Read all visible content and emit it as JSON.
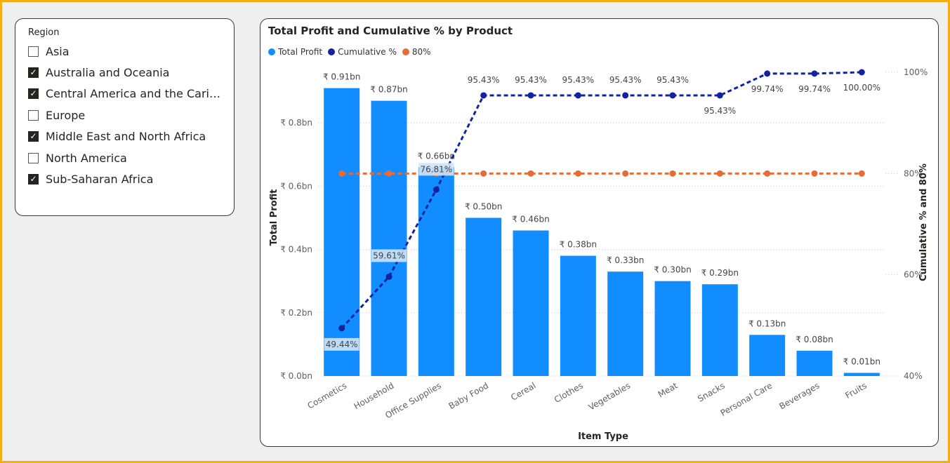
{
  "slicer": {
    "title": "Region",
    "items": [
      {
        "label": "Asia",
        "checked": false
      },
      {
        "label": "Australia and Oceania",
        "checked": true
      },
      {
        "label": "Central America and the Caribbe...",
        "checked": true
      },
      {
        "label": "Europe",
        "checked": false
      },
      {
        "label": "Middle East and North Africa",
        "checked": true
      },
      {
        "label": "North America",
        "checked": false
      },
      {
        "label": "Sub-Saharan Africa",
        "checked": true
      }
    ],
    "check_glyph": "✓"
  },
  "chart": {
    "title": "Total Profit and Cumulative % by Product",
    "legend": [
      {
        "label": "Total Profit",
        "color": "#118dff"
      },
      {
        "label": "Cumulative %",
        "color": "#12239e"
      },
      {
        "label": "80%",
        "color": "#e66c37"
      }
    ]
  },
  "chart_data": {
    "type": "bar",
    "title": "Total Profit and Cumulative % by Product",
    "xlabel": "Item Type",
    "ylabel": "Total Profit",
    "y2label": "Cumulative % and 80%",
    "categories": [
      "Cosmetics",
      "Household",
      "Office Supplies",
      "Baby Food",
      "Cereal",
      "Clothes",
      "Vegetables",
      "Meat",
      "Snacks",
      "Personal Care",
      "Beverages",
      "Fruits"
    ],
    "series": [
      {
        "name": "Total Profit",
        "type": "bar",
        "axis": "left",
        "color": "#118dff",
        "values": [
          0.91,
          0.87,
          0.66,
          0.5,
          0.46,
          0.38,
          0.33,
          0.3,
          0.29,
          0.13,
          0.08,
          0.01
        ],
        "labels": [
          "₹ 0.91bn",
          "₹ 0.87bn",
          "₹ 0.66bn",
          "₹ 0.50bn",
          "₹ 0.46bn",
          "₹ 0.38bn",
          "₹ 0.33bn",
          "₹ 0.30bn",
          "₹ 0.29bn",
          "₹ 0.13bn",
          "₹ 0.08bn",
          "₹ 0.01bn"
        ]
      },
      {
        "name": "Cumulative %",
        "type": "line",
        "axis": "right",
        "color": "#12239e",
        "values": [
          49.44,
          59.61,
          76.81,
          95.43,
          95.43,
          95.43,
          95.43,
          95.43,
          95.43,
          99.74,
          99.74,
          100.0
        ],
        "labels": [
          "49.44%",
          "59.61%",
          "76.81%",
          "95.43%",
          "95.43%",
          "95.43%",
          "95.43%",
          "95.43%",
          "95.43%",
          "99.74%",
          "99.74%",
          "100.00%"
        ]
      },
      {
        "name": "80%",
        "type": "line",
        "axis": "right",
        "color": "#e66c37",
        "values": [
          80,
          80,
          80,
          80,
          80,
          80,
          80,
          80,
          80,
          80,
          80,
          80
        ]
      }
    ],
    "ylim": [
      0,
      1.0
    ],
    "yticks": [
      0,
      0.2,
      0.4,
      0.6,
      0.8
    ],
    "ytick_labels": [
      "₹ 0.0bn",
      "₹ 0.2bn",
      "₹ 0.4bn",
      "₹ 0.6bn",
      "₹ 0.8bn"
    ],
    "y2lim": [
      40,
      100
    ],
    "y2ticks": [
      40,
      60,
      80,
      100
    ],
    "y2tick_labels": [
      "40%",
      "60%",
      "80%",
      "100%"
    ],
    "grid": true,
    "legend_position": "top-left"
  }
}
